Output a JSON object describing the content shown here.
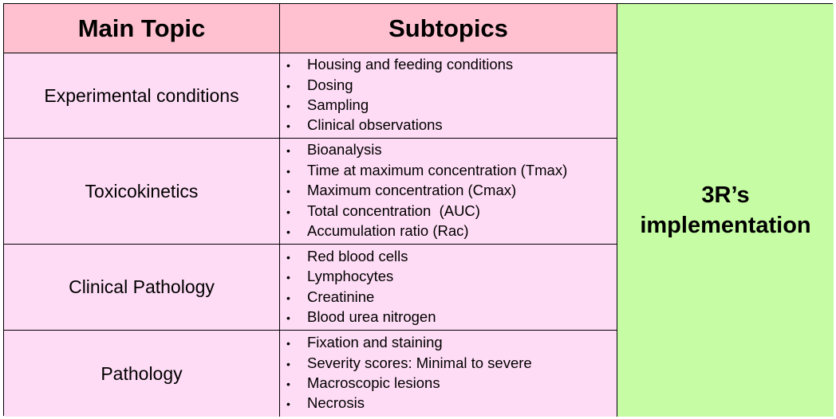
{
  "header": {
    "main_topic": "Main Topic",
    "subtopics": "Subtopics"
  },
  "side_label": {
    "line1": "3R’s",
    "line2": "implementation"
  },
  "rows": [
    {
      "topic": "Experimental conditions",
      "subtopics": [
        "Housing and feeding conditions",
        "Dosing",
        "Sampling",
        "Clinical observations"
      ]
    },
    {
      "topic": "Toxicokinetics",
      "subtopics": [
        "Bioanalysis",
        "Time at maximum concentration (Tmax)",
        "Maximum concentration (Cmax)",
        "Total concentration  (AUC)",
        "Accumulation ratio (Rac)"
      ]
    },
    {
      "topic": "Clinical Pathology",
      "subtopics": [
        "Red blood cells",
        "Lymphocytes",
        "Creatinine",
        "Blood urea nitrogen"
      ]
    },
    {
      "topic": "Pathology",
      "subtopics": [
        "Fixation and staining",
        "Severity scores: Minimal to severe",
        "Macroscopic lesions",
        "Necrosis"
      ]
    }
  ],
  "colors": {
    "header_bg": "#ffc1cf",
    "body_bg": "#ffdcf5",
    "side_bg": "#c6fca4"
  }
}
